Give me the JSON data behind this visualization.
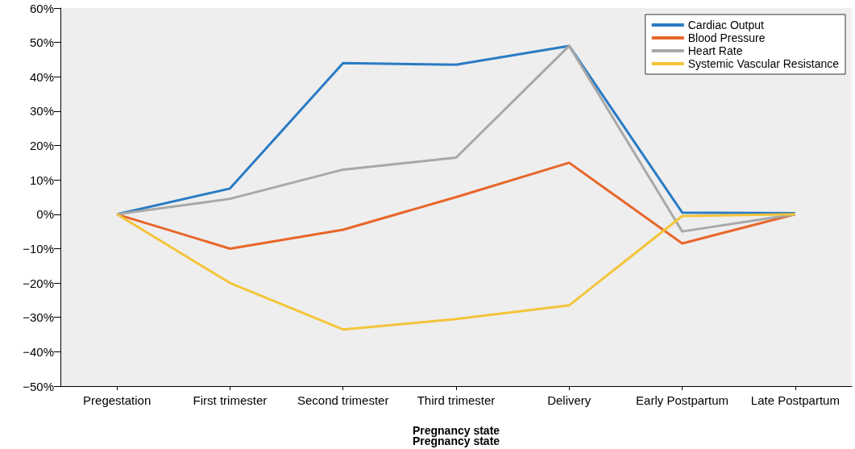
{
  "chart_data": {
    "type": "line",
    "xlabel": "Pregnancy state",
    "annotations": [
      "Pregnancy state"
    ],
    "categories": [
      "Pregestation",
      "First trimester",
      "Second trimester",
      "Third trimester",
      "Delivery",
      "Early Postpartum",
      "Late Postpartum"
    ],
    "series": [
      {
        "name": "Cardiac Output",
        "color": "#2a7bc4",
        "values": [
          0,
          7.5,
          44,
          43.5,
          49,
          0.5,
          0.3
        ]
      },
      {
        "name": "Blood Pressure",
        "color": "#e8662a",
        "values": [
          0,
          -10,
          -4.5,
          5,
          15,
          -8.5,
          0
        ]
      },
      {
        "name": "Heart Rate",
        "color": "#a8a8a8",
        "values": [
          0,
          4.5,
          13,
          16.5,
          49,
          -5,
          0
        ]
      },
      {
        "name": "Systemic Vascular Resistance",
        "color": "#f4c43a",
        "values": [
          0,
          -20,
          -33.5,
          -30.5,
          -26.5,
          -0.5,
          0
        ]
      }
    ],
    "ylim": [
      -50,
      60
    ],
    "yticks": [
      {
        "value": -50,
        "label": "−50%"
      },
      {
        "value": -40,
        "label": "−40%"
      },
      {
        "value": -30,
        "label": "−30%"
      },
      {
        "value": -20,
        "label": "−20%"
      },
      {
        "value": -10,
        "label": "−10%"
      },
      {
        "value": 0,
        "label": "0%"
      },
      {
        "value": 10,
        "label": "10%"
      },
      {
        "value": 20,
        "label": "20%"
      },
      {
        "value": 30,
        "label": "30%"
      },
      {
        "value": 40,
        "label": "40%"
      },
      {
        "value": 50,
        "label": "50%"
      },
      {
        "value": 60,
        "label": "60%"
      }
    ],
    "grid": false,
    "legend": "top right"
  }
}
